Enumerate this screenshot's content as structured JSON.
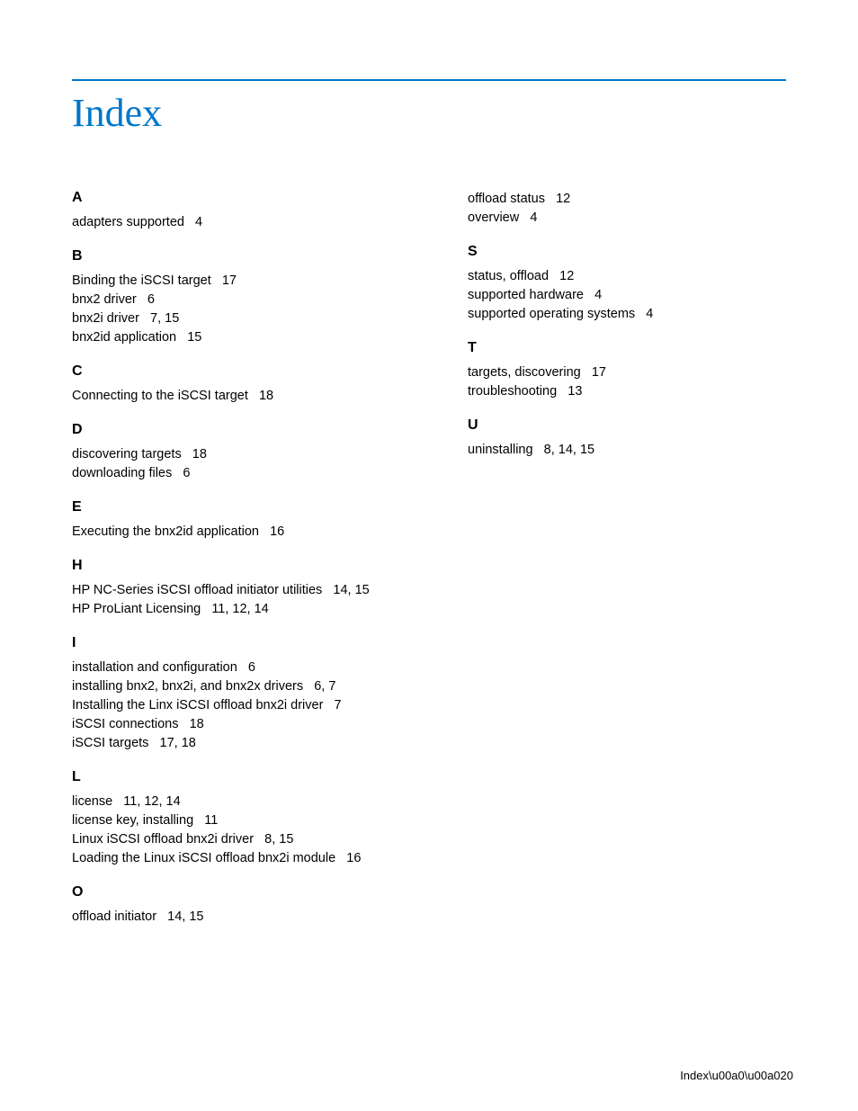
{
  "page": {
    "title": "Index",
    "footer_label": "Index",
    "footer_page": "20"
  },
  "col1": [
    {
      "letter": "A",
      "entries": [
        {
          "t": "adapters supported",
          "p": "4"
        }
      ]
    },
    {
      "letter": "B",
      "entries": [
        {
          "t": "Binding the iSCSI target",
          "p": "17"
        },
        {
          "t": "bnx2 driver",
          "p": "6"
        },
        {
          "t": "bnx2i driver",
          "p": "7, 15"
        },
        {
          "t": "bnx2id application",
          "p": "15"
        }
      ]
    },
    {
      "letter": "C",
      "entries": [
        {
          "t": "Connecting to the iSCSI target",
          "p": "18"
        }
      ]
    },
    {
      "letter": "D",
      "entries": [
        {
          "t": "discovering targets",
          "p": "18"
        },
        {
          "t": "downloading files",
          "p": "6"
        }
      ]
    },
    {
      "letter": "E",
      "entries": [
        {
          "t": "Executing the bnx2id application",
          "p": "16"
        }
      ]
    },
    {
      "letter": "H",
      "entries": [
        {
          "t": "HP NC-Series iSCSI offload initiator utilities",
          "p": "14, 15"
        },
        {
          "t": "HP ProLiant Licensing",
          "p": "11, 12, 14"
        }
      ]
    },
    {
      "letter": "I",
      "entries": [
        {
          "t": "installation and configuration",
          "p": "6"
        },
        {
          "t": "installing bnx2, bnx2i, and bnx2x drivers",
          "p": "6, 7"
        },
        {
          "t": "Installing the Linx iSCSI offload bnx2i driver",
          "p": "7"
        },
        {
          "t": "iSCSI connections",
          "p": "18"
        },
        {
          "t": "iSCSI targets",
          "p": "17, 18"
        }
      ]
    },
    {
      "letter": "L",
      "entries": [
        {
          "t": "license",
          "p": "11, 12, 14"
        },
        {
          "t": "license key, installing",
          "p": "11"
        },
        {
          "t": "Linux iSCSI offload bnx2i driver",
          "p": "8, 15"
        },
        {
          "t": "Loading the Linux iSCSI offload bnx2i module",
          "p": "16"
        }
      ]
    },
    {
      "letter": "O",
      "entries": [
        {
          "t": "offload initiator",
          "p": "14, 15"
        }
      ]
    }
  ],
  "col2": [
    {
      "letter": "",
      "entries": [
        {
          "t": "offload status",
          "p": "12"
        },
        {
          "t": "overview",
          "p": "4"
        }
      ]
    },
    {
      "letter": "S",
      "entries": [
        {
          "t": "status, offload",
          "p": "12"
        },
        {
          "t": "supported hardware",
          "p": "4"
        },
        {
          "t": "supported operating systems",
          "p": "4"
        }
      ]
    },
    {
      "letter": "T",
      "entries": [
        {
          "t": "targets, discovering",
          "p": "17"
        },
        {
          "t": "troubleshooting",
          "p": "13"
        }
      ]
    },
    {
      "letter": "U",
      "entries": [
        {
          "t": "uninstalling",
          "p": "8, 14, 15"
        }
      ]
    }
  ]
}
